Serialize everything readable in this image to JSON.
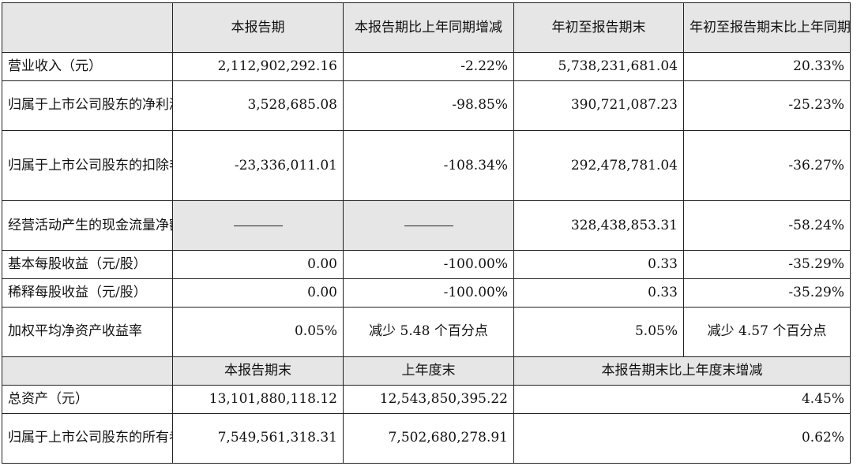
{
  "header": {
    "corner": "",
    "col1": "本报告期",
    "col2": "本报告期比上年同期增减",
    "col3": "年初至报告期末",
    "col4": "年初至报告期末比上年同期增减"
  },
  "rows": [
    {
      "label": "营业收入（元）",
      "v1": "2,112,902,292.16",
      "v2": "-2.22%",
      "v3": "5,738,231,681.04",
      "v4": "20.33%"
    },
    {
      "label": "归属于上市公司股东的净利润（元）",
      "v1": "3,528,685.08",
      "v2": "-98.85%",
      "v3": "390,721,087.23",
      "v4": "-25.23%"
    },
    {
      "label": "归属于上市公司股东的扣除非经常性损益的净利润（元）",
      "v1": "-23,336,011.01",
      "v2": "-108.34%",
      "v3": "292,478,781.04",
      "v4": "-36.27%"
    },
    {
      "label": "经营活动产生的现金流量净额（元）",
      "v1": "——",
      "v2": "——",
      "v3": "328,438,853.31",
      "v4": "-58.24%"
    },
    {
      "label": "基本每股收益（元/股）",
      "v1": "0.00",
      "v2": "-100.00%",
      "v3": "0.33",
      "v4": "-35.29%"
    },
    {
      "label": "稀释每股收益（元/股）",
      "v1": "0.00",
      "v2": "-100.00%",
      "v3": "0.33",
      "v4": "-35.29%"
    },
    {
      "label": "加权平均净资产收益率",
      "v1": "0.05%",
      "v2": "减少 5.48 个百分点",
      "v3": "5.05%",
      "v4": "减少 4.57 个百分点"
    }
  ],
  "header2": {
    "corner": "",
    "col1": "本报告期末",
    "col2": "上年度末",
    "col3": "本报告期末比上年度末增减"
  },
  "rows2": [
    {
      "label": "总资产（元）",
      "v1": "13,101,880,118.12",
      "v2": "12,543,850,395.22",
      "v3": "4.45%"
    },
    {
      "label": "归属于上市公司股东的所有者权益（元）",
      "v1": "7,549,561,318.31",
      "v2": "7,502,680,278.91",
      "v3": "0.62%"
    }
  ],
  "colors": {
    "header_gray": "#e6e6e6",
    "border": "#222222",
    "text": "#111111"
  }
}
